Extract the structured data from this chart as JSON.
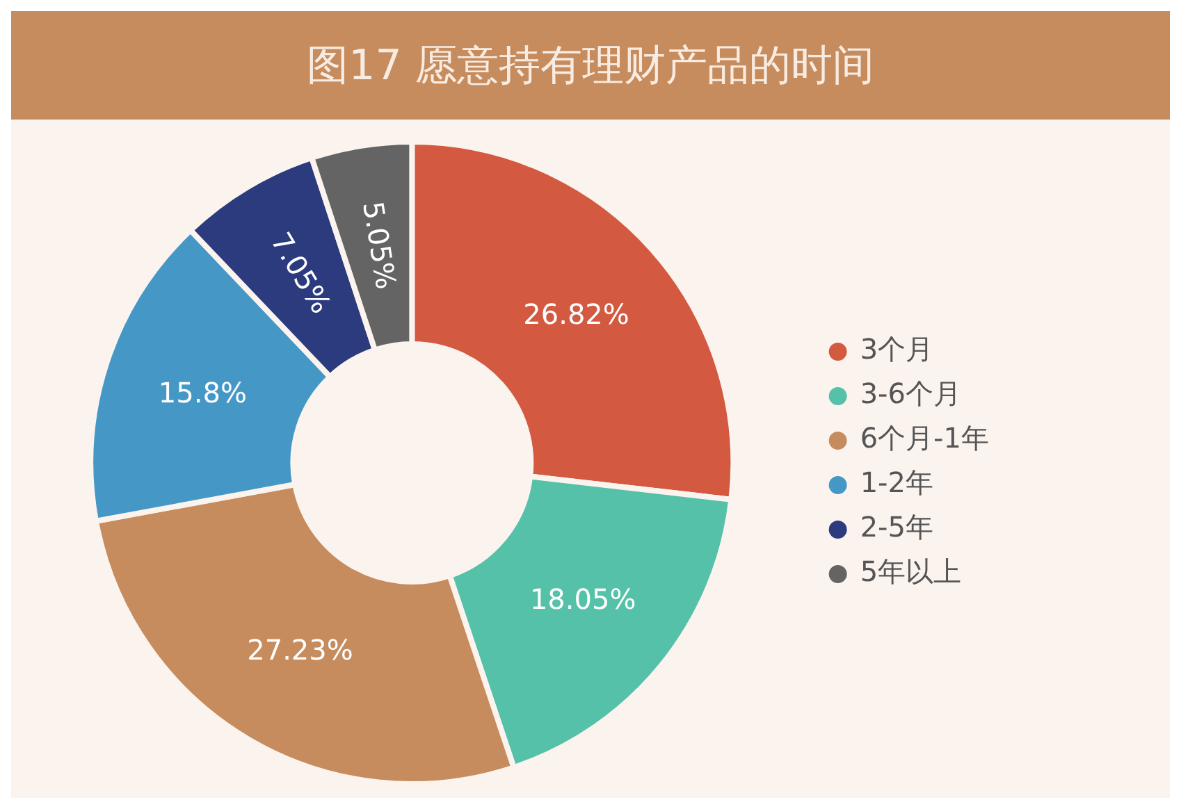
{
  "chart_data": {
    "type": "donut",
    "title": "图17  愿意持有理财产品的时间",
    "categories": [
      "3个月",
      "3-6个月",
      "6个月-1年",
      "1-2年",
      "2-5年",
      "5年以上"
    ],
    "values": [
      26.82,
      18.05,
      27.23,
      15.8,
      7.05,
      5.05
    ],
    "value_labels": [
      "26.82%",
      "18.05%",
      "27.23%",
      "15.8%",
      "7.05%",
      "5.05%"
    ],
    "colors": [
      "#d35940",
      "#55c1a8",
      "#c68c5e",
      "#4598c6",
      "#2c3a7e",
      "#646464"
    ],
    "legend": "right"
  }
}
